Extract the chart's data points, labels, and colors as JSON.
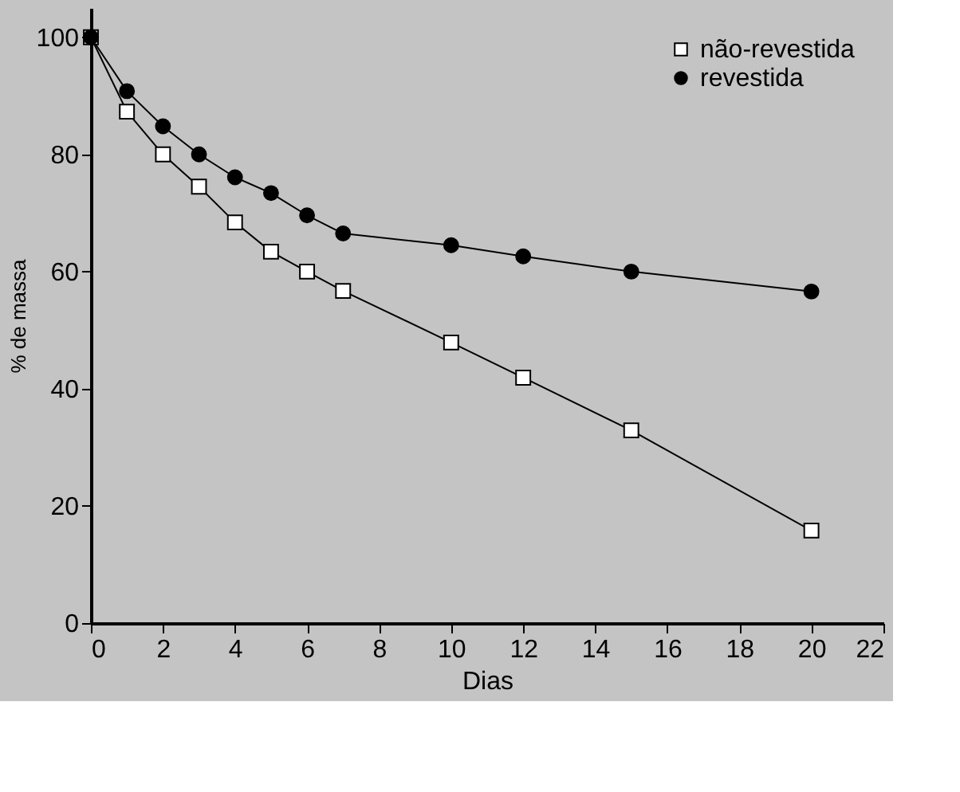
{
  "chart_data": {
    "type": "line",
    "xlabel": "Dias",
    "ylabel": "% de massa",
    "x": [
      0,
      1,
      2,
      3,
      4,
      5,
      6,
      7,
      10,
      12,
      15,
      20
    ],
    "series": [
      {
        "name": "não-revestida",
        "color": "#000000",
        "marker": "square",
        "values": [
          100,
          87.3,
          80,
          74.5,
          68.4,
          63.4,
          60,
          56.7,
          47.9,
          41.9,
          32.9,
          15.8
        ]
      },
      {
        "name": "revestida",
        "color": "#000000",
        "marker": "circle",
        "values": [
          100,
          90.8,
          84.8,
          80,
          76.1,
          73.4,
          69.6,
          66.5,
          64.5,
          62.6,
          60,
          56.6
        ]
      }
    ],
    "xlim": [
      0,
      22
    ],
    "xticks": [
      0,
      2,
      4,
      6,
      8,
      10,
      12,
      14,
      16,
      18,
      20,
      22
    ],
    "ylim": [
      0,
      105
    ],
    "yticks": [
      0,
      20,
      40,
      60,
      80,
      100
    ],
    "grid": false,
    "legend": "top right",
    "line_style": "solid"
  }
}
